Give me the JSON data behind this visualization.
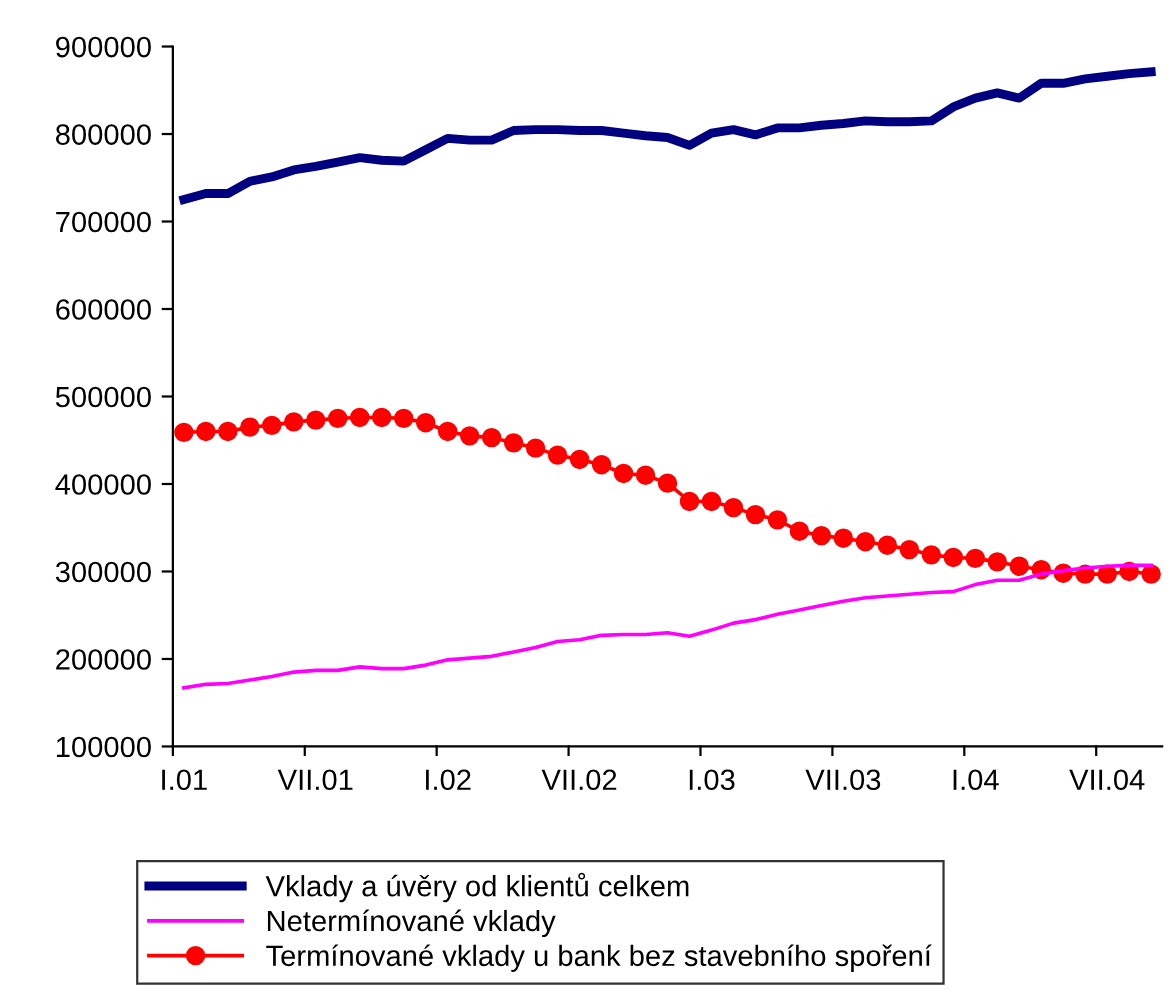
{
  "chart_data": {
    "type": "line",
    "categories": [
      "I.01",
      null,
      null,
      null,
      null,
      null,
      "VII.01",
      null,
      null,
      null,
      null,
      null,
      "I.02",
      null,
      null,
      null,
      null,
      null,
      "VII.02",
      null,
      null,
      null,
      null,
      null,
      "I.03",
      null,
      null,
      null,
      null,
      null,
      "VII.03",
      null,
      null,
      null,
      null,
      null,
      "I.04",
      null,
      null,
      null,
      null,
      null,
      "VII.04",
      null,
      null
    ],
    "series": [
      {
        "name": "Vklady a úvěry od klientů celkem",
        "color": "#000080",
        "marker": "none",
        "values": [
          725000,
          732000,
          732000,
          746000,
          751000,
          759000,
          763000,
          768000,
          773000,
          770000,
          769000,
          782000,
          795000,
          793000,
          793000,
          804000,
          805000,
          805000,
          804000,
          804000,
          801000,
          798000,
          796000,
          787000,
          801000,
          805000,
          799000,
          807000,
          807000,
          810000,
          812000,
          815000,
          814000,
          814000,
          815000,
          831000,
          841000,
          847000,
          841000,
          858000,
          858000,
          863000,
          866000,
          869000,
          871000
        ]
      },
      {
        "name": "Netermínované vklady",
        "color": "#ff00ff",
        "marker": "none",
        "values": [
          167000,
          171000,
          172000,
          176000,
          180000,
          185000,
          187000,
          187000,
          191000,
          189000,
          189000,
          193000,
          199000,
          201000,
          203000,
          208000,
          213000,
          220000,
          222000,
          227000,
          228000,
          228000,
          230000,
          226000,
          233000,
          241000,
          245000,
          251000,
          256000,
          261000,
          266000,
          270000,
          272000,
          274000,
          276000,
          277000,
          285000,
          290000,
          290000,
          297000,
          301000,
          304000,
          306000,
          307000,
          307000
        ]
      },
      {
        "name": "Termínované vklady u bank bez stavebního spoření",
        "color": "#ff0000",
        "marker": "circle",
        "values": [
          459000,
          460000,
          460000,
          465000,
          467000,
          471000,
          473000,
          475000,
          476000,
          476000,
          475000,
          470000,
          460000,
          455000,
          453000,
          447000,
          441000,
          433000,
          428000,
          422000,
          412000,
          410000,
          401000,
          380000,
          380000,
          373000,
          365000,
          359000,
          346000,
          341000,
          338000,
          334000,
          330000,
          325000,
          319000,
          316000,
          315000,
          311000,
          306000,
          302000,
          298000,
          297000,
          297000,
          300000,
          297000
        ]
      }
    ],
    "ylim": [
      100000,
      900000
    ],
    "yticks": [
      100000,
      200000,
      300000,
      400000,
      500000,
      600000,
      700000,
      800000,
      900000
    ],
    "grid": false,
    "legend": "bottom",
    "line_style": "solid"
  }
}
